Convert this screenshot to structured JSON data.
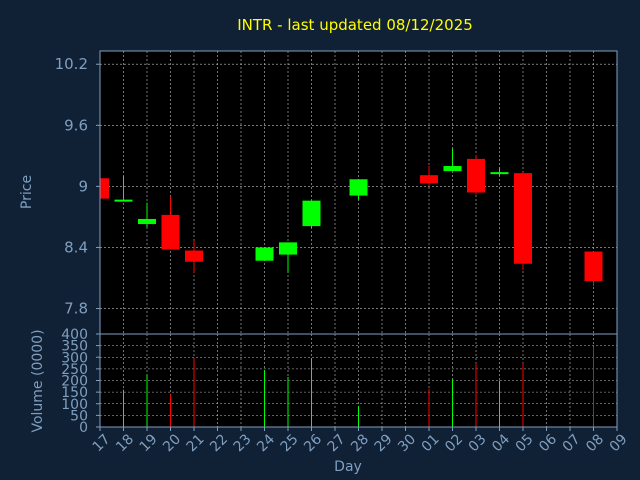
{
  "colors": {
    "background": "#102035",
    "plot_background": "#000000",
    "grid": "#c0c0c0",
    "axis_text": "#7f9fbf",
    "title": "#ffff00",
    "up": "#00ff00",
    "down": "#ff0000"
  },
  "chart_data": [
    {
      "type": "candlestick",
      "title": "INTR - last updated 08/12/2025",
      "ylabel": "Price",
      "ylim": [
        7.55,
        10.33
      ],
      "y_ticks": [
        7.8,
        8.4,
        9,
        9.6,
        10.2
      ],
      "y_tick_labels": [
        "7.8",
        "8.4",
        "9",
        "9.6",
        "10.2"
      ],
      "grid": true,
      "categories": [
        "17",
        "18",
        "19",
        "20",
        "21",
        "22",
        "23",
        "24",
        "25",
        "26",
        "27",
        "28",
        "29",
        "30",
        "01",
        "02",
        "03",
        "04",
        "05",
        "06",
        "07",
        "08",
        "09"
      ],
      "candles": [
        {
          "day": "17",
          "open": 9.08,
          "close": 8.88,
          "high": 9.08,
          "low": 8.88
        },
        {
          "day": "18",
          "open": 8.86,
          "close": 8.87,
          "high": 9.1,
          "low": 8.86
        },
        {
          "day": "19",
          "open": 8.63,
          "close": 8.68,
          "high": 8.84,
          "low": 8.6
        },
        {
          "day": "20",
          "open": 8.72,
          "close": 8.38,
          "high": 8.9,
          "low": 8.38
        },
        {
          "day": "21",
          "open": 8.37,
          "close": 8.26,
          "high": 8.47,
          "low": 8.15
        },
        {
          "day": "24",
          "open": 8.27,
          "close": 8.4,
          "high": 8.4,
          "low": 8.27
        },
        {
          "day": "25",
          "open": 8.33,
          "close": 8.45,
          "high": 8.45,
          "low": 8.15
        },
        {
          "day": "26",
          "open": 8.61,
          "close": 8.86,
          "high": 8.86,
          "low": 8.59
        },
        {
          "day": "28",
          "open": 8.91,
          "close": 9.07,
          "high": 9.07,
          "low": 8.87
        },
        {
          "day": "01",
          "open": 9.11,
          "close": 9.03,
          "high": 9.2,
          "low": 9.0
        },
        {
          "day": "02",
          "open": 9.15,
          "close": 9.2,
          "high": 9.37,
          "low": 9.15
        },
        {
          "day": "03",
          "open": 9.27,
          "close": 8.94,
          "high": 9.31,
          "low": 8.92
        },
        {
          "day": "04",
          "open": 9.13,
          "close": 9.14,
          "high": 9.19,
          "low": 9.1
        },
        {
          "day": "05",
          "open": 9.13,
          "close": 8.24,
          "high": 9.14,
          "low": 8.18
        },
        {
          "day": "08",
          "open": 8.36,
          "close": 8.07,
          "high": 8.36,
          "low": 8.02
        }
      ]
    },
    {
      "type": "bar",
      "xlabel": "Day",
      "ylabel": "Volume (0000)",
      "ylim": [
        0,
        400
      ],
      "y_ticks": [
        0,
        50,
        100,
        150,
        200,
        250,
        300,
        350,
        400
      ],
      "y_tick_labels": [
        "0",
        "50",
        "100",
        "150",
        "200",
        "250",
        "300",
        "350",
        "400"
      ],
      "grid": true,
      "categories": [
        "17",
        "18",
        "19",
        "20",
        "21",
        "22",
        "23",
        "24",
        "25",
        "26",
        "27",
        "28",
        "29",
        "30",
        "01",
        "02",
        "03",
        "04",
        "05",
        "06",
        "07",
        "08",
        "09"
      ],
      "bars": [
        {
          "day": "17",
          "value": 0,
          "dir": "down"
        },
        {
          "day": "18",
          "value": 160,
          "dir": "up"
        },
        {
          "day": "19",
          "value": 225,
          "dir": "up"
        },
        {
          "day": "20",
          "value": 140,
          "dir": "down"
        },
        {
          "day": "21",
          "value": 295,
          "dir": "down"
        },
        {
          "day": "24",
          "value": 245,
          "dir": "up"
        },
        {
          "day": "25",
          "value": 215,
          "dir": "up"
        },
        {
          "day": "26",
          "value": 295,
          "dir": "up"
        },
        {
          "day": "28",
          "value": 90,
          "dir": "up"
        },
        {
          "day": "01",
          "value": 165,
          "dir": "down"
        },
        {
          "day": "02",
          "value": 205,
          "dir": "up"
        },
        {
          "day": "03",
          "value": 275,
          "dir": "down"
        },
        {
          "day": "04",
          "value": 200,
          "dir": "up"
        },
        {
          "day": "05",
          "value": 275,
          "dir": "down"
        },
        {
          "day": "08",
          "value": 345,
          "dir": "down"
        }
      ]
    }
  ]
}
